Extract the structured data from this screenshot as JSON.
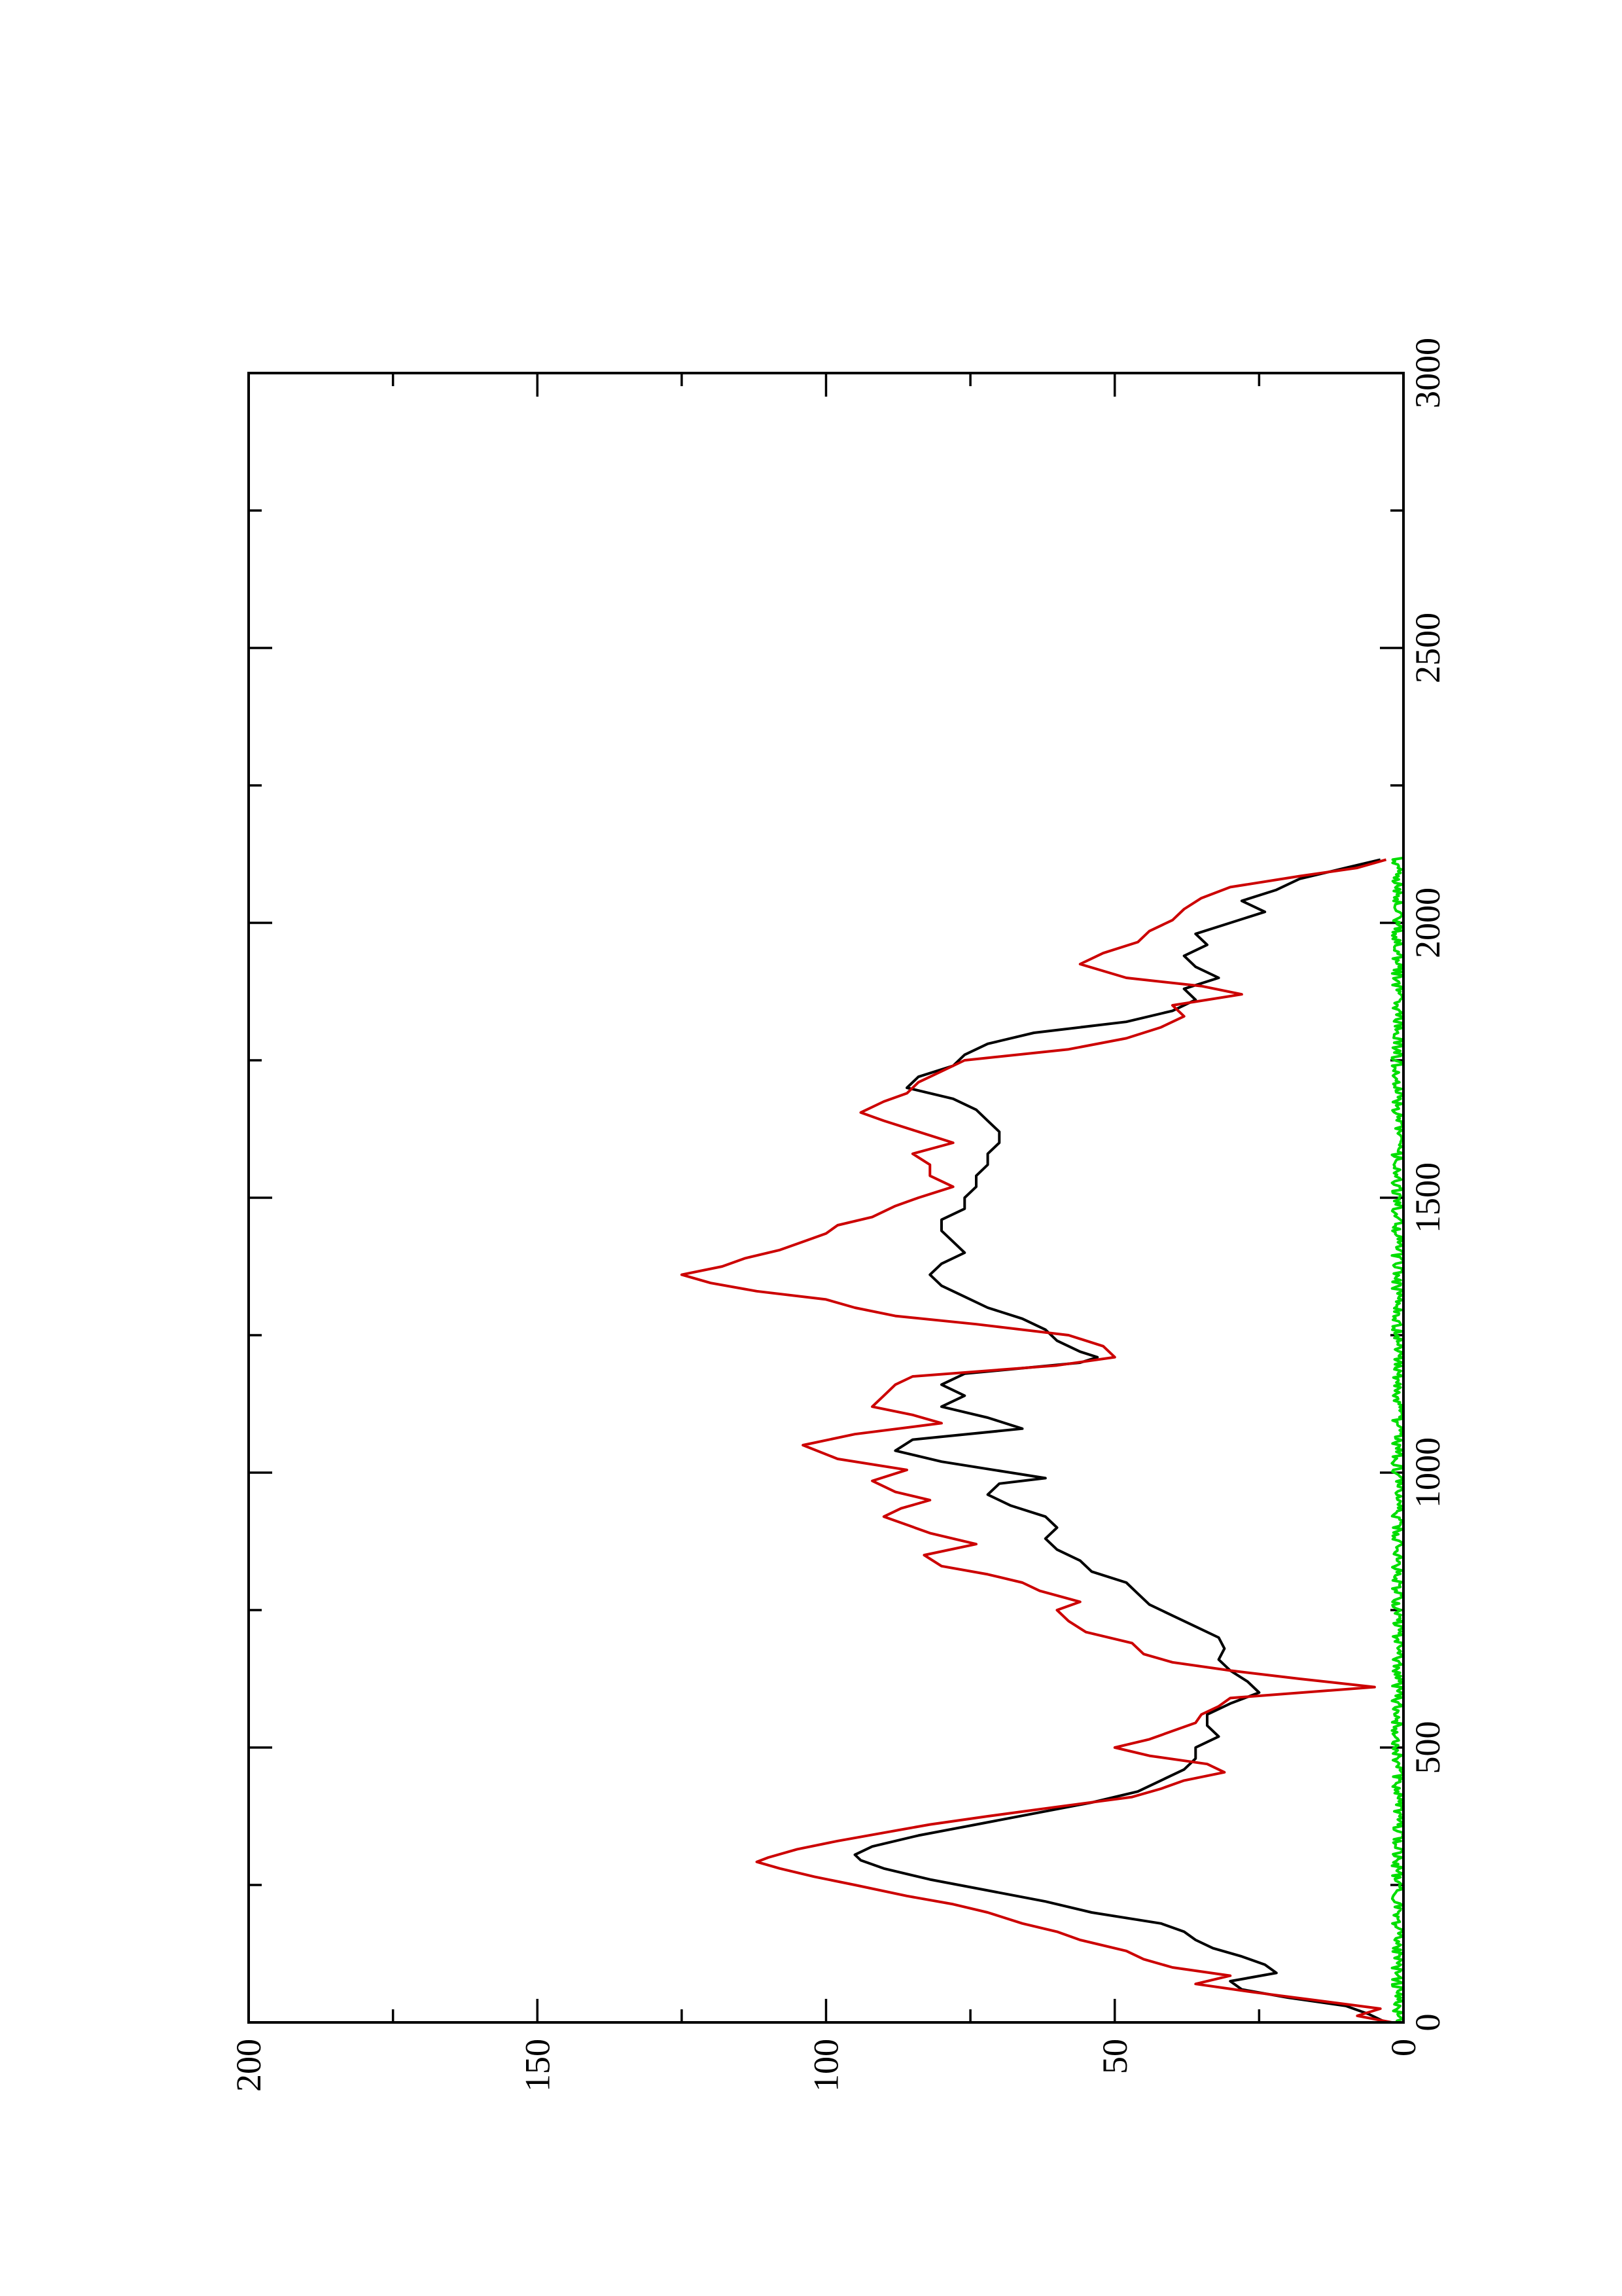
{
  "chart_data": {
    "type": "line",
    "orientation": "rotated-90-clockwise",
    "title": "",
    "xlabel": "",
    "ylabel": "",
    "xlim": [
      0,
      3000
    ],
    "ylim": [
      0,
      200
    ],
    "x_ticks": [
      0,
      500,
      1000,
      1500,
      2000,
      2500,
      3000
    ],
    "x_minor_ticks": [
      250,
      750,
      1250,
      1750,
      2250,
      2750
    ],
    "y_ticks": [
      0,
      50,
      100,
      150,
      200
    ],
    "y_minor_ticks": [
      25,
      75,
      125,
      175
    ],
    "x_tick_labels": [
      "0",
      "500",
      "1000",
      "1500",
      "2000",
      "2500",
      "3000"
    ],
    "y_tick_labels": [
      "0",
      "50",
      "100",
      "150",
      "200"
    ],
    "grid": false,
    "legend": "none",
    "series": [
      {
        "color": "#cc0000",
        "x": [
          0,
          12,
          25,
          40,
          55,
          70,
          85,
          100,
          115,
          130,
          150,
          165,
          180,
          200,
          215,
          230,
          250,
          265,
          280,
          292,
          300,
          315,
          330,
          345,
          360,
          375,
          392,
          410,
          425,
          440,
          455,
          470,
          485,
          500,
          515,
          530,
          545,
          560,
          575,
          590,
          610,
          625,
          640,
          655,
          670,
          690,
          710,
          730,
          750,
          765,
          785,
          800,
          815,
          830,
          850,
          870,
          890,
          905,
          920,
          935,
          950,
          965,
          985,
          1005,
          1025,
          1050,
          1070,
          1090,
          1105,
          1120,
          1140,
          1160,
          1175,
          1195,
          1210,
          1230,
          1250,
          1270,
          1285,
          1300,
          1315,
          1330,
          1345,
          1360,
          1375,
          1390,
          1405,
          1420,
          1435,
          1450,
          1465,
          1485,
          1500,
          1520,
          1540,
          1560,
          1580,
          1600,
          1620,
          1640,
          1655,
          1675,
          1690,
          1710,
          1730,
          1750,
          1770,
          1790,
          1810,
          1830,
          1850,
          1870,
          1885,
          1900,
          1925,
          1945,
          1965,
          1985,
          2005,
          2025,
          2045,
          2065,
          2085,
          2100,
          2115
        ],
        "y": [
          2,
          8,
          4,
          15,
          26,
          36,
          30,
          40,
          45,
          48,
          56,
          60,
          66,
          72,
          78,
          86,
          95,
          102,
          108,
          112,
          110,
          105,
          98,
          90,
          82,
          72,
          60,
          47,
          42,
          38,
          31,
          34,
          44,
          50,
          44,
          40,
          36,
          35,
          32,
          30,
          5,
          18,
          30,
          40,
          45,
          47,
          55,
          58,
          60,
          56,
          63,
          66,
          72,
          80,
          83,
          74,
          82,
          86,
          90,
          87,
          82,
          88,
          92,
          86,
          98,
          104,
          95,
          80,
          85,
          92,
          90,
          88,
          85,
          60,
          50,
          52,
          58,
          74,
          88,
          95,
          100,
          112,
          120,
          125,
          118,
          114,
          108,
          104,
          100,
          98,
          92,
          88,
          84,
          78,
          82,
          82,
          85,
          78,
          84,
          90,
          94,
          90,
          86,
          84,
          80,
          76,
          58,
          48,
          42,
          38,
          40,
          28,
          35,
          48,
          56,
          52,
          46,
          44,
          40,
          38,
          35,
          30,
          18,
          8,
          3
        ]
      },
      {
        "color": "#000000",
        "x": [
          0,
          15,
          30,
          45,
          60,
          75,
          90,
          105,
          120,
          135,
          150,
          165,
          180,
          200,
          220,
          240,
          260,
          280,
          295,
          305,
          320,
          340,
          360,
          380,
          400,
          420,
          440,
          460,
          480,
          500,
          520,
          540,
          560,
          580,
          600,
          620,
          640,
          660,
          680,
          700,
          720,
          740,
          760,
          780,
          800,
          820,
          840,
          860,
          880,
          900,
          920,
          940,
          960,
          980,
          990,
          1000,
          1020,
          1040,
          1060,
          1080,
          1100,
          1120,
          1140,
          1160,
          1180,
          1200,
          1210,
          1220,
          1240,
          1260,
          1280,
          1300,
          1320,
          1340,
          1360,
          1380,
          1400,
          1420,
          1440,
          1460,
          1480,
          1500,
          1520,
          1540,
          1560,
          1580,
          1600,
          1620,
          1640,
          1660,
          1680,
          1700,
          1720,
          1740,
          1760,
          1780,
          1800,
          1820,
          1840,
          1860,
          1880,
          1900,
          1920,
          1940,
          1960,
          1980,
          2000,
          2020,
          2040,
          2060,
          2080,
          2100,
          2115
        ],
        "y": [
          3,
          6,
          10,
          20,
          28,
          30,
          22,
          24,
          28,
          33,
          36,
          38,
          42,
          54,
          62,
          72,
          82,
          90,
          94,
          95,
          92,
          84,
          74,
          64,
          54,
          46,
          42,
          38,
          36,
          36,
          32,
          34,
          34,
          30,
          25,
          27,
          30,
          32,
          31,
          32,
          36,
          40,
          44,
          46,
          48,
          54,
          56,
          60,
          62,
          60,
          62,
          68,
          72,
          70,
          62,
          68,
          80,
          88,
          85,
          66,
          72,
          80,
          76,
          80,
          76,
          56,
          53,
          56,
          60,
          62,
          66,
          72,
          76,
          80,
          82,
          80,
          76,
          78,
          80,
          80,
          76,
          76,
          74,
          74,
          72,
          72,
          70,
          70,
          72,
          74,
          78,
          86,
          84,
          78,
          76,
          72,
          64,
          48,
          40,
          36,
          38,
          32,
          36,
          38,
          34,
          36,
          30,
          24,
          28,
          22,
          18,
          10,
          4
        ]
      },
      {
        "color": "#00dd00",
        "x_range": [
          0,
          2120
        ],
        "baseline": 0,
        "amplitude": 2,
        "style": "noise"
      }
    ]
  }
}
